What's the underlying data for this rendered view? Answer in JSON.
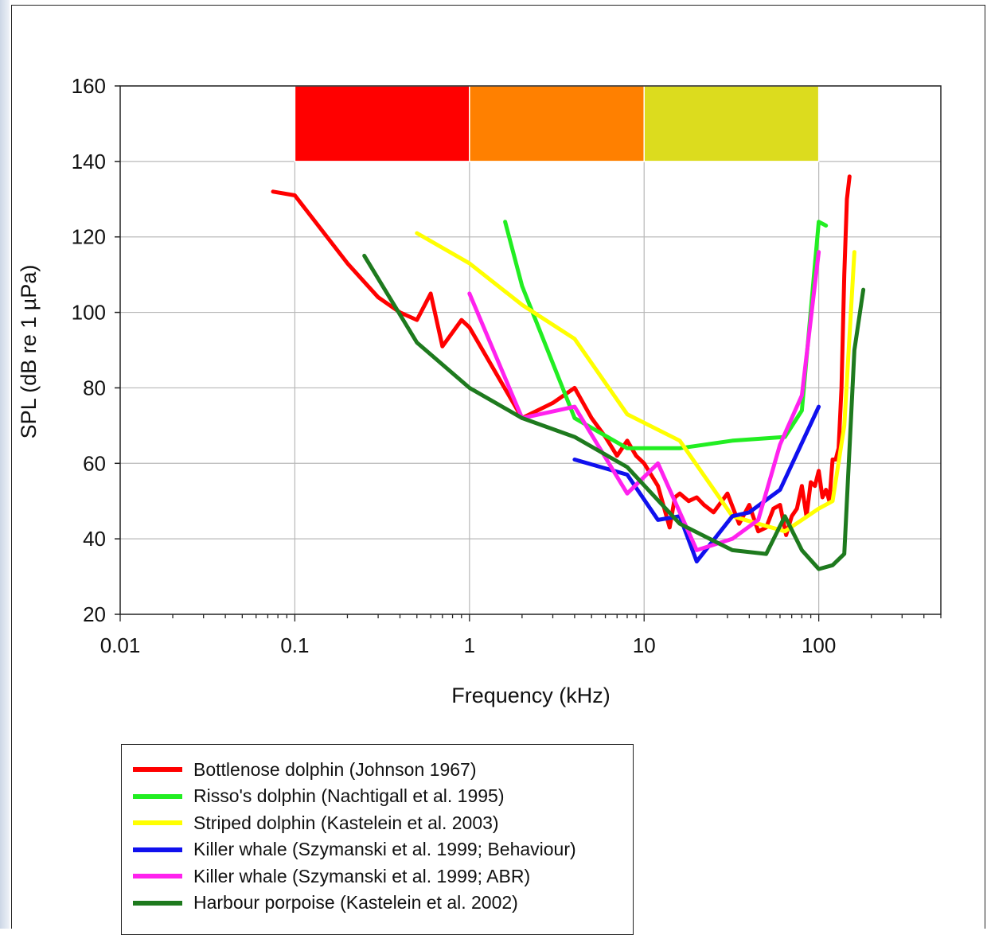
{
  "chart_data": {
    "type": "line",
    "title": "",
    "xlabel": "Frequency (kHz)",
    "ylabel": "SPL (dB re 1 µPa)",
    "xscale": "log",
    "xlim": [
      0.01,
      500
    ],
    "ylim": [
      20,
      160
    ],
    "xticks": [
      0.01,
      0.1,
      1,
      10,
      100
    ],
    "xtick_labels": [
      "0.01",
      "0.1",
      "1",
      "10",
      "100"
    ],
    "yticks": [
      20,
      40,
      60,
      80,
      100,
      120,
      140,
      160
    ],
    "ytick_labels": [
      "20",
      "40",
      "60",
      "80",
      "100",
      "120",
      "140",
      "160"
    ],
    "grid": true,
    "legend_position": "below",
    "bands": [
      {
        "x": [
          0.1,
          1
        ],
        "y": [
          140,
          160
        ],
        "color": "#ff0000"
      },
      {
        "x": [
          1,
          10
        ],
        "y": [
          140,
          160
        ],
        "color": "#ff8000"
      },
      {
        "x": [
          10,
          100
        ],
        "y": [
          140,
          160
        ],
        "color": "#dcdc1e"
      }
    ],
    "series": [
      {
        "name": "Bottlenose dolphin (Johnson 1967)",
        "color": "#ff0000",
        "x": [
          0.075,
          0.1,
          0.2,
          0.3,
          0.4,
          0.5,
          0.6,
          0.7,
          0.9,
          1,
          2,
          3,
          4,
          5,
          6,
          7,
          8,
          9,
          10,
          12,
          14,
          15,
          16,
          18,
          20,
          22,
          25,
          30,
          35,
          40,
          45,
          50,
          55,
          60,
          65,
          70,
          75,
          80,
          85,
          90,
          95,
          100,
          105,
          110,
          115,
          120,
          125,
          130,
          135,
          140,
          145,
          150
        ],
        "y": [
          132,
          131,
          113,
          104,
          100,
          98,
          105,
          91,
          98,
          96,
          72,
          76,
          80,
          72,
          67,
          62,
          66,
          62,
          60,
          54,
          43,
          51,
          52,
          50,
          51,
          49,
          47,
          52,
          44,
          49,
          42,
          43,
          48,
          49,
          41,
          46,
          48,
          54,
          46,
          55,
          54,
          58,
          51,
          53,
          50,
          61,
          61,
          64,
          80,
          110,
          130,
          136
        ]
      },
      {
        "name": "Risso's dolphin (Nachtigall et al. 1995)",
        "color": "#22ee22",
        "x": [
          1.6,
          2,
          4,
          8,
          16,
          32,
          64,
          80,
          100,
          110
        ],
        "y": [
          124,
          107,
          72,
          64,
          64,
          66,
          67,
          74,
          124,
          123
        ]
      },
      {
        "name": "Striped dolphin (Kastelein et al. 2003)",
        "color": "#ffff00",
        "x": [
          0.5,
          1,
          2,
          4,
          8,
          16,
          32,
          45,
          64,
          100,
          120,
          140,
          160
        ],
        "y": [
          121,
          113,
          102,
          93,
          73,
          66,
          46,
          44,
          42,
          48,
          50,
          70,
          116
        ]
      },
      {
        "name": "Killer whale (Szymanski et al. 1999; Behaviour)",
        "color": "#1010ee",
        "x": [
          4,
          8,
          12,
          16,
          20,
          32,
          40,
          60,
          100
        ],
        "y": [
          61,
          57,
          45,
          46,
          34,
          46,
          47,
          53,
          75
        ]
      },
      {
        "name": "Killer whale (Szymanski et al. 1999;  ABR)",
        "color": "#ff22ee",
        "x": [
          1,
          2,
          4,
          8,
          12,
          20,
          32,
          45,
          60,
          80,
          100
        ],
        "y": [
          105,
          72,
          75,
          52,
          60,
          37,
          40,
          45,
          65,
          78,
          116
        ]
      },
      {
        "name": "Harbour porpoise (Kastelein et al. 2002)",
        "color": "#1e7a1e",
        "x": [
          0.25,
          0.5,
          1,
          2,
          4,
          8,
          16,
          32,
          50,
          64,
          80,
          100,
          120,
          140,
          160,
          180
        ],
        "y": [
          115,
          92,
          80,
          72,
          67,
          59,
          44,
          37,
          36,
          46,
          37,
          32,
          33,
          36,
          90,
          106
        ]
      }
    ]
  }
}
